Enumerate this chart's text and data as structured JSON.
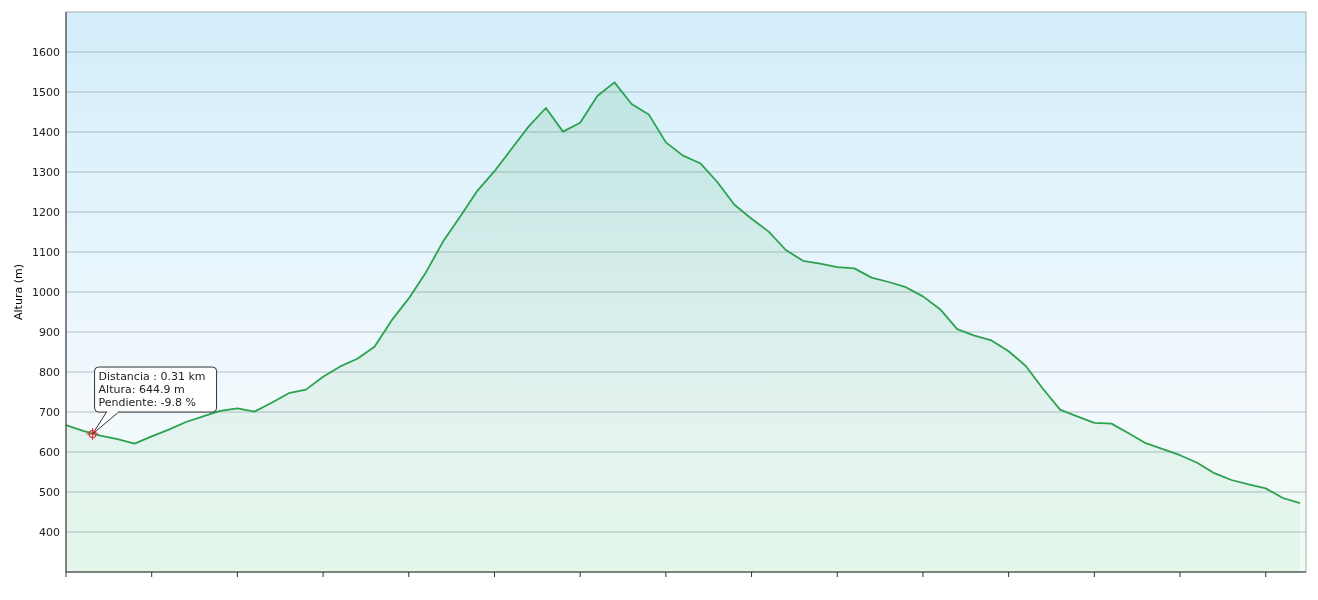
{
  "chart_data": {
    "type": "area",
    "ylabel": "Altura (m)",
    "ylim": [
      300,
      1700
    ],
    "categories": [
      null,
      null,
      null,
      null,
      null,
      null,
      null,
      null,
      null,
      null,
      null,
      null,
      null,
      null,
      null,
      null,
      null,
      null,
      null,
      null,
      null,
      null,
      null,
      null,
      null,
      null,
      null,
      null,
      null,
      null,
      null,
      null,
      null,
      null,
      null,
      null,
      null,
      null,
      null,
      null,
      null,
      null,
      null,
      null,
      null,
      null,
      null,
      null,
      null,
      null,
      null,
      null,
      null,
      null,
      null,
      null,
      null,
      null,
      null,
      null,
      null,
      null,
      null,
      null,
      null,
      null,
      null,
      null,
      null,
      null,
      null,
      null,
      null
    ],
    "yticks": [
      400,
      500,
      600,
      700,
      800,
      900,
      1000,
      1100,
      1200,
      1300,
      1400,
      1500,
      1600
    ],
    "grid": "y",
    "tick_labels": "y",
    "series": [
      {
        "color": "#2ca24f",
        "values": [
          667,
          653,
          641,
          632,
          621,
          639,
          656,
          675,
          689,
          703,
          709,
          701,
          723,
          747,
          756,
          788,
          814,
          833,
          863,
          929,
          984,
          1049,
          1126,
          1189,
          1253,
          1302,
          1358,
          1414,
          1460,
          1401,
          1423,
          1490,
          1524,
          1470,
          1444,
          1374,
          1341,
          1322,
          1275,
          1218,
          1183,
          1151,
          1105,
          1078,
          1071,
          1062,
          1059,
          1036,
          1025,
          1012,
          989,
          957,
          907,
          891,
          879,
          852,
          815,
          758,
          706,
          689,
          673,
          671,
          647,
          622,
          607,
          592,
          573,
          547,
          530,
          519,
          509,
          485,
          472
        ]
      }
    ],
    "annotations": [
      {
        "text": "Distancia : 0.31 km\nAltura: 644.9 m\nPendiente: -9.8 %",
        "y": 644.9
      }
    ]
  }
}
